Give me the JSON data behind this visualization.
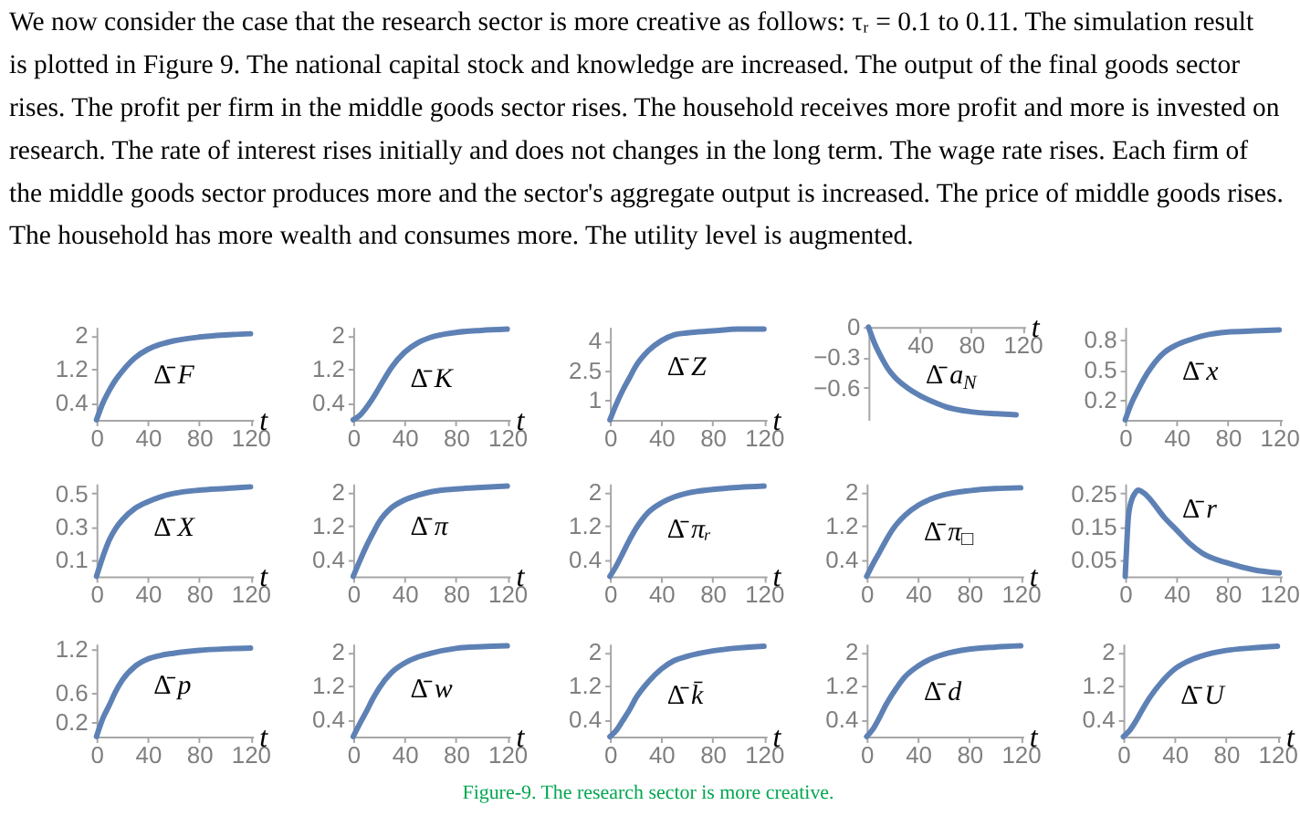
{
  "chart_data": [
    {
      "type": "other",
      "annotations": [
        "We now consider the case that the research sector is more creative as follows: τᵣ = 0.1 to 0.11. The simulation result is plotted in Figure 9. The national capital stock and knowledge are increased. The output of the final goods sector rises. The profit per firm in the middle goods sector rises. The household receives more profit and more is invested on research. The rate of interest rises initially and does not changes in the long term. The wage rate rises. Each firm of the middle goods sector produces more and the sector's aggregate output is increased. The price of middle goods rises. The household has more wealth and consumes more. The utility level is augmented."
      ]
    },
    {
      "type": "line",
      "xlabel": "t",
      "x": [
        0,
        5,
        10,
        15,
        20,
        30,
        40,
        50,
        60,
        80,
        100,
        120
      ],
      "series": [
        {
          "color": "#5e81b5",
          "values": [
            0,
            0.4,
            0.7,
            0.95,
            1.15,
            1.47,
            1.67,
            1.79,
            1.87,
            1.96,
            2.01,
            2.04
          ]
        }
      ],
      "xlim": [
        0,
        122
      ],
      "xticks": [
        0,
        40,
        80,
        120
      ],
      "ylim": [
        0,
        2.2
      ],
      "yticks": [
        0.4,
        1.2,
        2
      ],
      "annotations": [
        "Δ̄ F"
      ]
    },
    {
      "type": "line",
      "xlabel": "t",
      "x": [
        0,
        5,
        10,
        15,
        20,
        30,
        40,
        50,
        60,
        80,
        100,
        120
      ],
      "series": [
        {
          "color": "#5e81b5",
          "values": [
            0,
            0.1,
            0.28,
            0.5,
            0.75,
            1.25,
            1.6,
            1.82,
            1.95,
            2.07,
            2.12,
            2.15
          ]
        }
      ],
      "xlim": [
        0,
        122
      ],
      "xticks": [
        0,
        40,
        80,
        120
      ],
      "ylim": [
        0,
        2.2
      ],
      "yticks": [
        0.4,
        1.2,
        2
      ],
      "annotations": [
        "Δ̄ K"
      ]
    },
    {
      "type": "line",
      "xlabel": "t",
      "x": [
        0,
        5,
        10,
        15,
        20,
        30,
        40,
        50,
        60,
        80,
        100,
        120
      ],
      "series": [
        {
          "color": "#5e81b5",
          "values": [
            0,
            0.8,
            1.5,
            2.1,
            2.7,
            3.5,
            4.0,
            4.3,
            4.4,
            4.5,
            4.6,
            4.6
          ]
        }
      ],
      "xlim": [
        0,
        122
      ],
      "xticks": [
        0,
        40,
        80,
        120
      ],
      "ylim": [
        0,
        4.7
      ],
      "yticks": [
        1,
        2.5,
        4
      ],
      "annotations": [
        "Δ̄ Z"
      ]
    },
    {
      "type": "line",
      "xlabel": "t",
      "x": [
        0,
        5,
        10,
        15,
        20,
        30,
        40,
        50,
        60,
        80,
        100,
        115
      ],
      "series": [
        {
          "color": "#5e81b5",
          "values": [
            0,
            -0.17,
            -0.3,
            -0.41,
            -0.49,
            -0.6,
            -0.68,
            -0.74,
            -0.79,
            -0.84,
            -0.86,
            -0.87
          ]
        }
      ],
      "xlim": [
        0,
        122
      ],
      "xticks": [
        40,
        80,
        120
      ],
      "ylim": [
        -0.92,
        0
      ],
      "yticks": [
        -0.6,
        -0.3,
        0
      ],
      "annotations": [
        "Δ̄ a$_{N}$"
      ]
    },
    {
      "type": "line",
      "x": [
        0,
        5,
        10,
        15,
        20,
        30,
        40,
        50,
        60,
        80,
        100,
        120
      ],
      "series": [
        {
          "color": "#5e81b5",
          "values": [
            0,
            0.17,
            0.3,
            0.42,
            0.52,
            0.67,
            0.75,
            0.8,
            0.84,
            0.88,
            0.89,
            0.9
          ]
        }
      ],
      "xlim": [
        0,
        122
      ],
      "xticks": [
        0,
        40,
        80,
        120
      ],
      "ylim": [
        0,
        0.93
      ],
      "yticks": [
        0.2,
        0.5,
        0.8
      ],
      "annotations": [
        "Δ̄ x"
      ]
    },
    {
      "type": "line",
      "xlabel": "t",
      "x": [
        0,
        5,
        10,
        15,
        20,
        30,
        40,
        50,
        60,
        80,
        100,
        120
      ],
      "series": [
        {
          "color": "#5e81b5",
          "values": [
            0,
            0.12,
            0.22,
            0.29,
            0.34,
            0.41,
            0.45,
            0.48,
            0.5,
            0.52,
            0.53,
            0.54
          ]
        }
      ],
      "xlim": [
        0,
        122
      ],
      "xticks": [
        0,
        40,
        80,
        120
      ],
      "ylim": [
        0,
        0.56
      ],
      "yticks": [
        0.1,
        0.3,
        0.5
      ],
      "annotations": [
        "Δ̄ X"
      ]
    },
    {
      "type": "line",
      "xlabel": "t",
      "x": [
        0,
        5,
        10,
        15,
        20,
        30,
        40,
        50,
        60,
        80,
        100,
        120
      ],
      "series": [
        {
          "color": "#5e81b5",
          "values": [
            0,
            0.36,
            0.7,
            1.0,
            1.28,
            1.63,
            1.81,
            1.92,
            2.0,
            2.07,
            2.11,
            2.14
          ]
        }
      ],
      "xlim": [
        0,
        122
      ],
      "xticks": [
        0,
        40,
        80,
        120
      ],
      "ylim": [
        0,
        2.2
      ],
      "yticks": [
        0.4,
        1.2,
        2
      ],
      "annotations": [
        "Δ̄ π"
      ]
    },
    {
      "type": "line",
      "xlabel": "t",
      "x": [
        0,
        5,
        10,
        15,
        20,
        30,
        40,
        50,
        60,
        80,
        100,
        120
      ],
      "series": [
        {
          "color": "#5e81b5",
          "values": [
            0,
            0.25,
            0.55,
            0.85,
            1.12,
            1.52,
            1.74,
            1.88,
            1.97,
            2.06,
            2.11,
            2.14
          ]
        }
      ],
      "xlim": [
        0,
        122
      ],
      "xticks": [
        0,
        40,
        80,
        120
      ],
      "ylim": [
        0,
        2.2
      ],
      "yticks": [
        0.4,
        1.2,
        2
      ],
      "annotations": [
        "Δ̄ πᵣ"
      ]
    },
    {
      "type": "line",
      "xlabel": "t",
      "x": [
        0,
        5,
        10,
        15,
        20,
        30,
        40,
        50,
        60,
        80,
        100,
        120
      ],
      "series": [
        {
          "color": "#5e81b5",
          "values": [
            0,
            0.3,
            0.57,
            0.85,
            1.1,
            1.45,
            1.68,
            1.83,
            1.93,
            2.03,
            2.08,
            2.1
          ]
        }
      ],
      "xlim": [
        0,
        122
      ],
      "xticks": [
        0,
        40,
        80,
        120
      ],
      "ylim": [
        0,
        2.2
      ],
      "yticks": [
        0.4,
        1.2,
        2
      ],
      "annotations": [
        "Δ̄ π$_{□}$"
      ]
    },
    {
      "type": "line",
      "x": [
        0,
        1,
        2.5,
        5,
        7.5,
        10,
        15,
        20,
        30,
        40,
        50,
        60,
        80,
        100,
        120
      ],
      "series": [
        {
          "color": "#5e81b5",
          "values": [
            0,
            0.08,
            0.18,
            0.23,
            0.25,
            0.26,
            0.25,
            0.23,
            0.18,
            0.14,
            0.1,
            0.07,
            0.04,
            0.02,
            0.01
          ]
        }
      ],
      "xlim": [
        0,
        122
      ],
      "xticks": [
        0,
        40,
        80,
        120
      ],
      "ylim": [
        0,
        0.28
      ],
      "yticks": [
        0.05,
        0.15,
        0.25
      ],
      "annotations": [
        "Δ̄ r"
      ]
    },
    {
      "type": "line",
      "xlabel": "t",
      "x": [
        0,
        5,
        10,
        15,
        20,
        30,
        40,
        50,
        60,
        80,
        100,
        120
      ],
      "series": [
        {
          "color": "#5e81b5",
          "values": [
            0,
            0.25,
            0.43,
            0.62,
            0.77,
            0.96,
            1.06,
            1.11,
            1.14,
            1.18,
            1.2,
            1.21
          ]
        }
      ],
      "xlim": [
        0,
        122
      ],
      "xticks": [
        0,
        40,
        80,
        120
      ],
      "ylim": [
        0,
        1.27
      ],
      "yticks": [
        0.2,
        0.6,
        1.2
      ],
      "annotations": [
        "Δ̄ p"
      ]
    },
    {
      "type": "line",
      "xlabel": "t",
      "x": [
        0,
        5,
        10,
        15,
        20,
        30,
        40,
        50,
        60,
        80,
        100,
        120
      ],
      "series": [
        {
          "color": "#5e81b5",
          "values": [
            0,
            0.3,
            0.58,
            0.88,
            1.14,
            1.52,
            1.74,
            1.88,
            1.97,
            2.09,
            2.13,
            2.15
          ]
        }
      ],
      "xlim": [
        0,
        122
      ],
      "xticks": [
        0,
        40,
        80,
        120
      ],
      "ylim": [
        0,
        2.2
      ],
      "yticks": [
        0.4,
        1.2,
        2
      ],
      "annotations": [
        "Δ̄ w"
      ]
    },
    {
      "type": "line",
      "xlabel": "t",
      "x": [
        0,
        5,
        10,
        15,
        20,
        30,
        40,
        50,
        60,
        80,
        100,
        120
      ],
      "series": [
        {
          "color": "#5e81b5",
          "values": [
            0,
            0.15,
            0.38,
            0.62,
            0.9,
            1.3,
            1.6,
            1.8,
            1.9,
            2.03,
            2.1,
            2.14
          ]
        }
      ],
      "xlim": [
        0,
        122
      ],
      "xticks": [
        0,
        40,
        80,
        120
      ],
      "ylim": [
        0,
        2.2
      ],
      "yticks": [
        0.4,
        1.2,
        2
      ],
      "annotations": [
        "Δ̄ k̄"
      ]
    },
    {
      "type": "line",
      "xlabel": "t",
      "x": [
        0,
        5,
        10,
        15,
        20,
        30,
        40,
        50,
        60,
        80,
        100,
        120
      ],
      "series": [
        {
          "color": "#5e81b5",
          "values": [
            0,
            0.18,
            0.45,
            0.75,
            1.0,
            1.42,
            1.67,
            1.84,
            1.95,
            2.07,
            2.12,
            2.15
          ]
        }
      ],
      "xlim": [
        0,
        122
      ],
      "xticks": [
        0,
        40,
        80,
        120
      ],
      "ylim": [
        0,
        2.2
      ],
      "yticks": [
        0.4,
        1.2,
        2
      ],
      "annotations": [
        "Δ̄ d"
      ]
    },
    {
      "type": "line",
      "xlabel": "t",
      "x": [
        0,
        5,
        10,
        15,
        20,
        30,
        40,
        50,
        60,
        80,
        100,
        120
      ],
      "series": [
        {
          "color": "#5e81b5",
          "values": [
            0,
            0.15,
            0.38,
            0.65,
            0.9,
            1.3,
            1.6,
            1.78,
            1.9,
            2.04,
            2.1,
            2.14
          ]
        }
      ],
      "xlim": [
        0,
        122
      ],
      "xticks": [
        0,
        40,
        80,
        120
      ],
      "ylim": [
        0,
        2.2
      ],
      "yticks": [
        0.4,
        1.2,
        2
      ],
      "annotations": [
        "Δ̄ U"
      ]
    },
    {
      "type": "other",
      "annotations": [
        "Figure-9. The research sector is more creative."
      ]
    }
  ]
}
